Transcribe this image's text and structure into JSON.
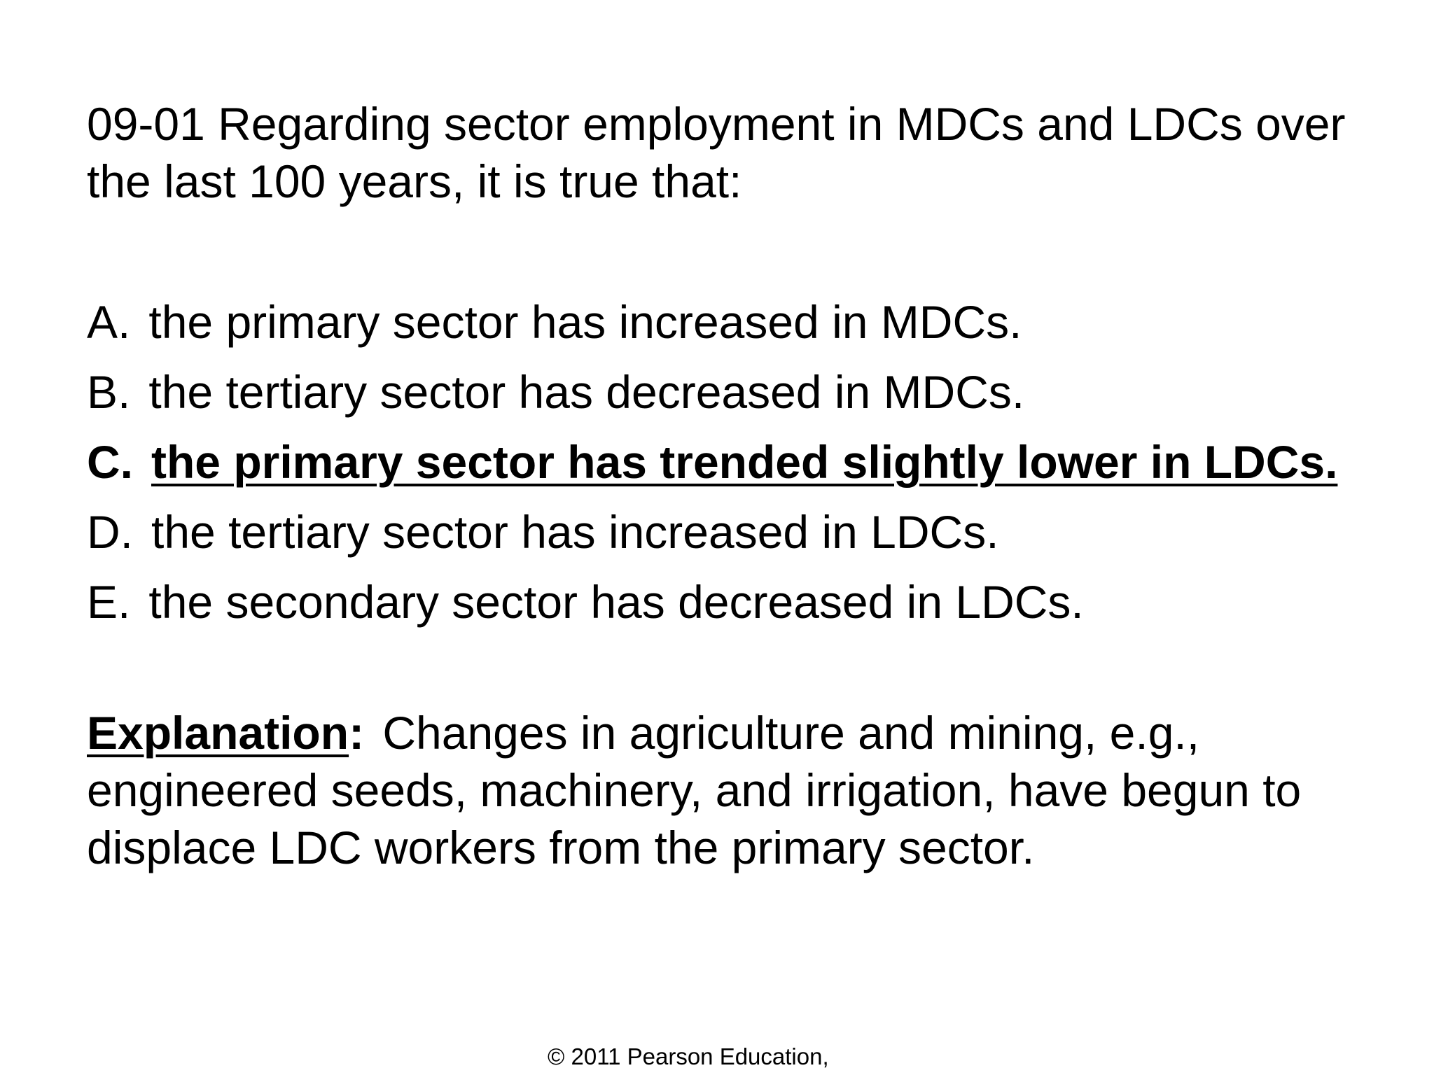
{
  "question": {
    "text": "09-01  Regarding sector employment in MDCs and LDCs over the last 100 years, it is true that:"
  },
  "options": [
    {
      "letter": "A.",
      "text": "the primary sector has increased in MDCs."
    },
    {
      "letter": "B.",
      "text": "the tertiary sector has decreased in MDCs."
    },
    {
      "letter": "C.",
      "text": "the primary sector has trended slightly lower in LDCs."
    },
    {
      "letter": "D.",
      "text": "the tertiary sector has increased in LDCs."
    },
    {
      "letter": "E.",
      "text": "the secondary sector has decreased in LDCs."
    }
  ],
  "correct_option": "C.",
  "explanation": {
    "label": "Explanation",
    "colon": ":",
    "text": "Changes in agriculture and mining, e.g., engineered seeds, machinery, and irrigation, have begun to displace LDC workers from the primary sector."
  },
  "footer": {
    "copyright": "© 2011 Pearson Education,"
  }
}
